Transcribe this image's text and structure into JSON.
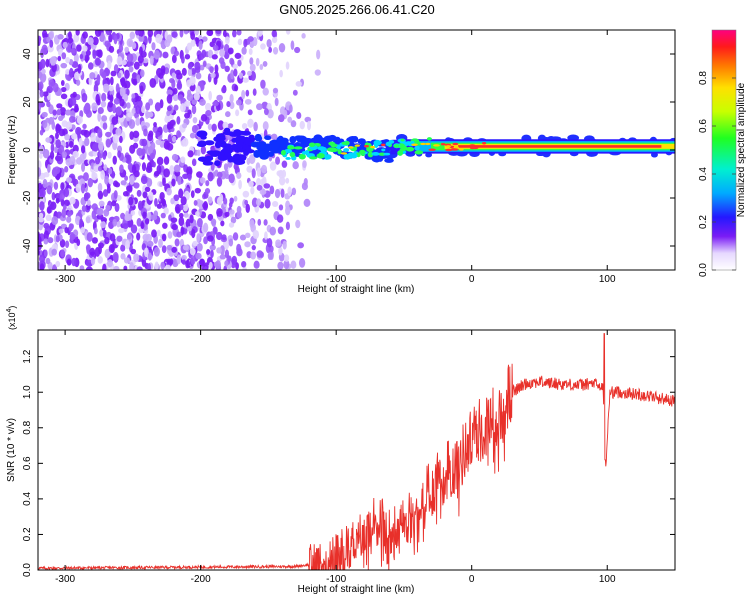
{
  "title": "GN05.2025.266.06.41.C20",
  "chart_data": [
    {
      "type": "heatmap",
      "name": "spectrogram",
      "xlabel": "Height of straight line (km)",
      "ylabel": "Frequency (Hz)",
      "xlim": [
        -320,
        150
      ],
      "ylim": [
        -50,
        50
      ],
      "xticks": [
        -300,
        -200,
        -100,
        0,
        100
      ],
      "xtick_labels": [
        "-300",
        "-200",
        "-100",
        "0",
        "100"
      ],
      "yticks": [
        -40,
        -20,
        0,
        20,
        40
      ],
      "ytick_labels": [
        "-40",
        "-20",
        "0",
        "20",
        "40"
      ],
      "colorbar": {
        "label": "Normalized spectral amplitude",
        "range": [
          0,
          1
        ],
        "ticks": [
          0,
          0.2,
          0.4,
          0.6,
          0.8
        ],
        "tick_labels": [
          "0.0",
          "0.2",
          "0.4",
          "0.6",
          "0.8"
        ]
      },
      "features": {
        "noise_region_km": [
          -320,
          -120
        ],
        "signal_onset_km": -120,
        "signal_center_hz": 1.5
      }
    },
    {
      "type": "line",
      "name": "snr",
      "xlabel": "Height of straight line (km)",
      "ylabel": "SNR (10 * v/v)",
      "scale_label": "(x10",
      "scale_exp": "4",
      "scale_close": ")",
      "xlim": [
        -320,
        150
      ],
      "ylim": [
        0,
        1.35
      ],
      "xticks": [
        -300,
        -200,
        -100,
        0,
        100
      ],
      "xtick_labels": [
        "-300",
        "-200",
        "-100",
        "0",
        "100"
      ],
      "yticks": [
        0,
        0.2,
        0.4,
        0.6,
        0.8,
        1.0,
        1.2
      ],
      "ytick_labels": [
        "0.0",
        "0.2",
        "0.4",
        "0.6",
        "0.8",
        "1.0",
        "1.2"
      ],
      "color": "#e8302a",
      "profile_x": [
        -320,
        -130,
        -110,
        -100,
        -90,
        -80,
        -70,
        -60,
        -50,
        -40,
        -30,
        -20,
        -10,
        0,
        10,
        20,
        30,
        40,
        50,
        60,
        80,
        90,
        97,
        99,
        102,
        110,
        130,
        150
      ],
      "profile_y": [
        0.01,
        0.02,
        0.04,
        0.08,
        0.14,
        0.22,
        0.28,
        0.22,
        0.26,
        0.35,
        0.45,
        0.55,
        0.6,
        0.75,
        0.82,
        0.9,
        1.0,
        1.05,
        1.06,
        1.05,
        1.04,
        1.05,
        1.02,
        0.6,
        1.0,
        1.0,
        0.98,
        0.95
      ]
    }
  ]
}
